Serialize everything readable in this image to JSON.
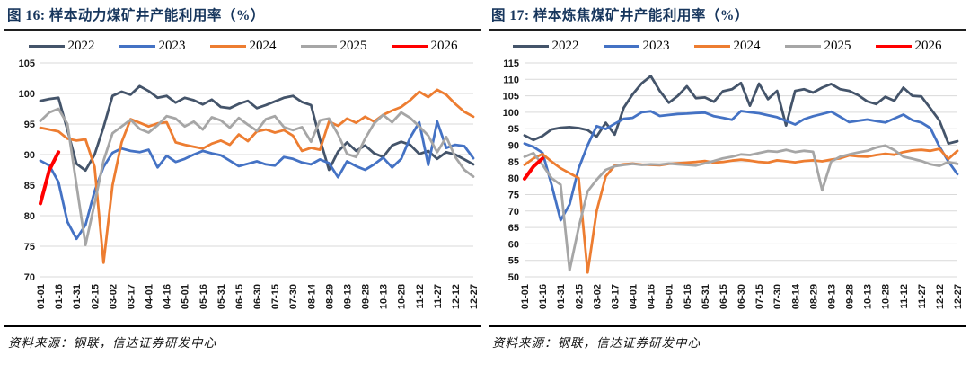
{
  "page": {
    "background": "#FFFFFF"
  },
  "chart_data": [
    {
      "type": "line",
      "title": "图 16: 样本动力煤矿井产能利用率（%）",
      "source": "资料来源：钢联，信达证券研发中心",
      "xlabel": "",
      "ylabel": "",
      "legend_position": "top",
      "grid": true,
      "ylim": [
        70,
        105
      ],
      "yticks": [
        70,
        75,
        80,
        85,
        90,
        95,
        100,
        105
      ],
      "categories": [
        "01-01",
        "01-16",
        "01-31",
        "02-15",
        "03-02",
        "03-17",
        "04-01",
        "04-16",
        "05-01",
        "05-16",
        "05-31",
        "06-15",
        "06-30",
        "07-15",
        "07-30",
        "08-14",
        "08-29",
        "09-13",
        "09-28",
        "10-13",
        "10-28",
        "11-12",
        "11-27",
        "12-12",
        "12-27"
      ],
      "series": [
        {
          "name": "2022",
          "color": "#44546A",
          "width": 2.8,
          "values": [
            98.8,
            99.1,
            99.3,
            94.0,
            88.5,
            87.4,
            90.0,
            94.5,
            99.6,
            100.3,
            99.8,
            101.2,
            100.4,
            99.3,
            99.6,
            98.5,
            99.3,
            98.9,
            98.2,
            99.0,
            97.8,
            97.6,
            98.3,
            98.8,
            97.6,
            98.1,
            98.7,
            99.3,
            99.6,
            98.6,
            98.1,
            92.5,
            87.5,
            90.5,
            92.0,
            90.6,
            91.5,
            90.2,
            89.6,
            91.5,
            92.1,
            91.6,
            90.1,
            90.6,
            89.3,
            90.4,
            90.0,
            89.2,
            88.4
          ]
        },
        {
          "name": "2023",
          "color": "#4472C4",
          "width": 2.8,
          "values": [
            89.0,
            88.2,
            85.5,
            79.0,
            76.2,
            78.5,
            84.0,
            88.0,
            90.3,
            91.0,
            90.6,
            90.4,
            90.8,
            87.9,
            89.8,
            88.8,
            89.3,
            90.0,
            90.6,
            90.2,
            89.9,
            89.0,
            88.1,
            88.5,
            88.9,
            88.4,
            88.2,
            89.6,
            89.3,
            88.7,
            88.4,
            89.2,
            88.6,
            86.3,
            88.9,
            88.1,
            87.5,
            88.4,
            89.5,
            87.9,
            89.3,
            92.8,
            95.3,
            88.3,
            95.4,
            91.1,
            91.6,
            91.4,
            89.4
          ]
        },
        {
          "name": "2024",
          "color": "#ED7D31",
          "width": 2.8,
          "values": [
            94.4,
            94.1,
            93.8,
            92.6,
            92.3,
            92.5,
            88.0,
            72.3,
            85.0,
            92.0,
            95.8,
            95.2,
            94.6,
            95.1,
            95.3,
            92.0,
            91.6,
            91.3,
            91.0,
            91.8,
            92.3,
            91.6,
            93.3,
            92.2,
            93.8,
            94.1,
            93.6,
            94.0,
            93.1,
            90.6,
            91.1,
            90.8,
            95.4,
            94.7,
            95.9,
            95.2,
            96.2,
            95.4,
            96.5,
            97.2,
            97.8,
            98.9,
            100.3,
            99.4,
            100.6,
            99.8,
            98.3,
            97.0,
            96.2
          ]
        },
        {
          "name": "2025",
          "color": "#A6A6A6",
          "width": 2.8,
          "values": [
            95.5,
            96.9,
            97.5,
            95.0,
            85.0,
            75.2,
            82.0,
            89.0,
            93.5,
            94.6,
            95.7,
            94.2,
            93.6,
            94.8,
            96.3,
            95.9,
            94.6,
            95.4,
            94.1,
            96.1,
            95.6,
            94.4,
            96.0,
            94.9,
            93.9,
            95.8,
            96.3,
            94.5,
            94.0,
            94.5,
            92.1,
            95.6,
            95.9,
            93.3,
            90.1,
            89.6,
            92.6,
            95.1,
            96.5,
            95.3,
            96.9,
            96.0,
            94.6,
            93.1,
            90.4,
            92.9,
            89.6,
            87.5,
            86.4
          ]
        },
        {
          "name": "2026",
          "color": "#FF0000",
          "width": 4,
          "values": [
            82.0,
            87.5,
            90.4
          ]
        }
      ]
    },
    {
      "type": "line",
      "title": "图 17: 样本炼焦煤矿井产能利用率（%）",
      "source": "资料来源：钢联，信达证券研发中心",
      "xlabel": "",
      "ylabel": "",
      "legend_position": "top",
      "grid": true,
      "ylim": [
        50,
        115
      ],
      "yticks": [
        50,
        55,
        60,
        65,
        70,
        75,
        80,
        85,
        90,
        95,
        100,
        105,
        110,
        115
      ],
      "categories": [
        "01-01",
        "01-16",
        "01-31",
        "02-15",
        "03-02",
        "03-17",
        "04-01",
        "04-16",
        "05-01",
        "05-16",
        "05-31",
        "06-15",
        "06-30",
        "07-15",
        "07-30",
        "08-14",
        "08-29",
        "09-13",
        "09-28",
        "10-13",
        "10-28",
        "11-12",
        "11-27",
        "12-12",
        "12-27"
      ],
      "series": [
        {
          "name": "2022",
          "color": "#44546A",
          "width": 2.8,
          "values": [
            93.0,
            91.6,
            92.8,
            94.8,
            95.3,
            95.5,
            95.2,
            94.6,
            92.6,
            96.8,
            93.2,
            101.4,
            105.5,
            108.8,
            111.0,
            106.5,
            102.9,
            105.0,
            107.9,
            104.3,
            104.5,
            103.2,
            106.4,
            107.0,
            108.9,
            102.0,
            108.7,
            104.0,
            106.5,
            96.0,
            106.5,
            107.0,
            106.0,
            107.5,
            108.6,
            107.0,
            106.5,
            105.2,
            103.3,
            102.5,
            104.7,
            103.5,
            107.5,
            105.0,
            104.8,
            101.2,
            97.5,
            90.5,
            91.2
          ]
        },
        {
          "name": "2023",
          "color": "#4472C4",
          "width": 2.8,
          "values": [
            90.5,
            89.5,
            87.7,
            78.0,
            67.2,
            72.0,
            83.0,
            90.0,
            95.8,
            94.9,
            96.5,
            98.0,
            98.3,
            100.0,
            100.3,
            98.9,
            99.2,
            99.5,
            99.6,
            99.8,
            99.9,
            98.8,
            98.3,
            97.7,
            100.4,
            100.0,
            99.7,
            99.1,
            98.5,
            97.4,
            96.3,
            97.9,
            98.8,
            99.5,
            100.2,
            98.6,
            97.0,
            97.4,
            97.8,
            97.3,
            96.9,
            98.1,
            99.3,
            97.6,
            96.9,
            95.2,
            89.6,
            85.0,
            81.2
          ]
        },
        {
          "name": "2024",
          "color": "#ED7D31",
          "width": 2.8,
          "values": [
            84.0,
            86.0,
            87.3,
            85.0,
            83.0,
            81.5,
            80.0,
            51.3,
            70.0,
            80.5,
            83.8,
            84.2,
            84.4,
            84.1,
            84.0,
            83.9,
            84.3,
            84.5,
            84.7,
            84.9,
            85.2,
            84.7,
            84.9,
            85.3,
            85.6,
            85.3,
            84.9,
            84.7,
            85.4,
            85.1,
            84.8,
            85.2,
            85.4,
            85.1,
            85.6,
            86.0,
            86.9,
            86.6,
            86.5,
            87.0,
            87.4,
            87.1,
            87.9,
            88.4,
            88.6,
            88.3,
            88.9,
            85.8,
            88.3
          ]
        },
        {
          "name": "2025",
          "color": "#A6A6A6",
          "width": 2.8,
          "values": [
            86.5,
            87.6,
            84.0,
            80.0,
            78.0,
            52.0,
            65.0,
            76.0,
            79.5,
            82.5,
            83.6,
            84.0,
            84.3,
            84.0,
            84.2,
            84.1,
            84.4,
            84.2,
            84.0,
            83.8,
            84.5,
            85.2,
            86.0,
            86.5,
            87.2,
            87.0,
            87.6,
            88.2,
            88.0,
            88.6,
            87.9,
            88.3,
            88.0,
            76.3,
            85.0,
            86.5,
            87.2,
            87.8,
            88.3,
            89.3,
            89.9,
            88.5,
            86.5,
            85.9,
            85.2,
            84.2,
            83.7,
            84.9,
            84.3
          ]
        },
        {
          "name": "2026",
          "color": "#FF0000",
          "width": 4,
          "values": [
            79.8,
            83.5,
            86.0
          ]
        }
      ]
    }
  ]
}
